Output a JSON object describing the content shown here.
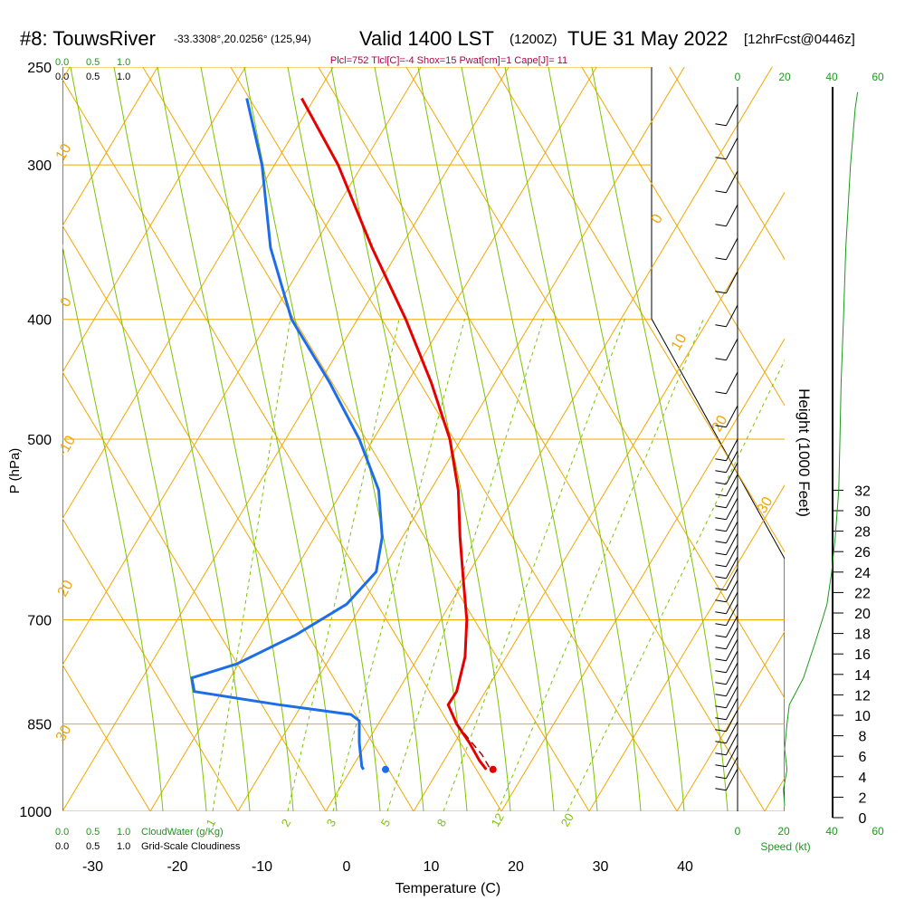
{
  "header": {
    "station": "#8: TouwsRiver",
    "coords": "-33.3308°,20.0256° (125,94)",
    "valid": "Valid 1400 LST",
    "zulu": "(1200Z)",
    "date": "TUE 31 May 2022",
    "fcst": "[12hrFcst@0446z]"
  },
  "stats": "Plcl=752 Tlcl[C]=-4 Shox=15 Pwat[cm]=1 Cape[J]= 11",
  "chart_data": {
    "type": "line",
    "title": "#8: TouwsRiver",
    "xlabel": "Temperature (C)",
    "ylabel": "P (hPa)",
    "y2label": "Height (1000 Feet)",
    "x_ticks": [
      "-30",
      "-20",
      "-10",
      "0",
      "10",
      "20",
      "30",
      "40"
    ],
    "p_ticks": [
      "250",
      "300",
      "400",
      "500",
      "700",
      "850",
      "1000"
    ],
    "height_ticks": [
      "0",
      "2",
      "4",
      "6",
      "8",
      "10",
      "12",
      "14",
      "16",
      "18",
      "20",
      "22",
      "24",
      "26",
      "28",
      "30",
      "32"
    ],
    "isotherm_labels": [
      "30",
      "20",
      "10",
      "0",
      "-10",
      "20",
      "10",
      "0",
      "-10"
    ],
    "mixing_ratio_labels": [
      "1",
      "2",
      "3",
      "5",
      "8",
      "12",
      "20"
    ],
    "cloud_top_labels": [
      "0.0",
      "0.5",
      "1.0"
    ],
    "cloud_top_labels2": [
      "0.0",
      "0.5",
      "1.0"
    ],
    "bottom_cloudwater": [
      "0.0",
      "0.5",
      "1.0"
    ],
    "bottom_cloudwater_label": "CloudWater (g/Kg)",
    "bottom_cloudiness": [
      "0.0",
      "0.5",
      "1.0"
    ],
    "bottom_cloudiness_label": "Grid-Scale Cloudiness",
    "speed_ticks_top_black": [
      "0"
    ],
    "speed_ticks_top_green": [
      "20",
      "40",
      "60"
    ],
    "speed_ticks_bottom_black": [
      "0",
      "20",
      "40",
      "60"
    ],
    "speed_label": "Speed (kt)",
    "series": [
      {
        "name": "Temperature",
        "color": "#e60000",
        "points": [
          [
            -5.3,
            265
          ],
          [
            -1,
            300
          ],
          [
            3,
            350
          ],
          [
            7,
            400
          ],
          [
            10,
            450
          ],
          [
            12.2,
            500
          ],
          [
            13.2,
            550
          ],
          [
            13.4,
            600
          ],
          [
            13.8,
            650
          ],
          [
            14.2,
            700
          ],
          [
            14,
            750
          ],
          [
            13,
            800
          ],
          [
            12,
            820
          ],
          [
            13,
            850
          ],
          [
            14.5,
            880
          ],
          [
            15.7,
            910
          ],
          [
            16.5,
            925
          ]
        ]
      },
      {
        "name": "Dewpoint",
        "color": "#1e6de8",
        "points": [
          [
            -11.8,
            265
          ],
          [
            -10,
            300
          ],
          [
            -9,
            350
          ],
          [
            -6.5,
            400
          ],
          [
            -2,
            450
          ],
          [
            1.5,
            500
          ],
          [
            3.8,
            550
          ],
          [
            4.2,
            600
          ],
          [
            3.5,
            640
          ],
          [
            0,
            680
          ],
          [
            -6,
            720
          ],
          [
            -13,
            760
          ],
          [
            -18.3,
            780
          ],
          [
            -18,
            800
          ],
          [
            -8,
            820
          ],
          [
            0.5,
            835
          ],
          [
            1.5,
            845
          ],
          [
            1.5,
            880
          ],
          [
            1.8,
            920
          ],
          [
            2,
            925
          ]
        ]
      },
      {
        "name": "Parcel",
        "color": "#b00000",
        "dashed": true,
        "points": [
          [
            13,
            850
          ],
          [
            14.5,
            875
          ],
          [
            16,
            900
          ],
          [
            17,
            925
          ]
        ]
      },
      {
        "name": "Wind speed",
        "color": "#1a9a1a",
        "points": [
          [
            20,
            990
          ],
          [
            19.5,
            960
          ],
          [
            21,
            925
          ],
          [
            20,
            890
          ],
          [
            21,
            850
          ],
          [
            22,
            820
          ],
          [
            28,
            780
          ],
          [
            33,
            730
          ],
          [
            36,
            700
          ],
          [
            38,
            680
          ],
          [
            40,
            640
          ],
          [
            41.5,
            600
          ],
          [
            43,
            550
          ],
          [
            43.5,
            500
          ],
          [
            44,
            450
          ],
          [
            45,
            400
          ],
          [
            46,
            350
          ],
          [
            48,
            300
          ],
          [
            50,
            270
          ],
          [
            51,
            262
          ]
        ]
      }
    ],
    "surface_points": [
      {
        "name": "surface temperature",
        "t": 17.3,
        "p": 925,
        "color": "#e60000"
      },
      {
        "name": "surface dewpoint",
        "t": 4.6,
        "p": 925,
        "color": "#1e6de8"
      }
    ]
  }
}
